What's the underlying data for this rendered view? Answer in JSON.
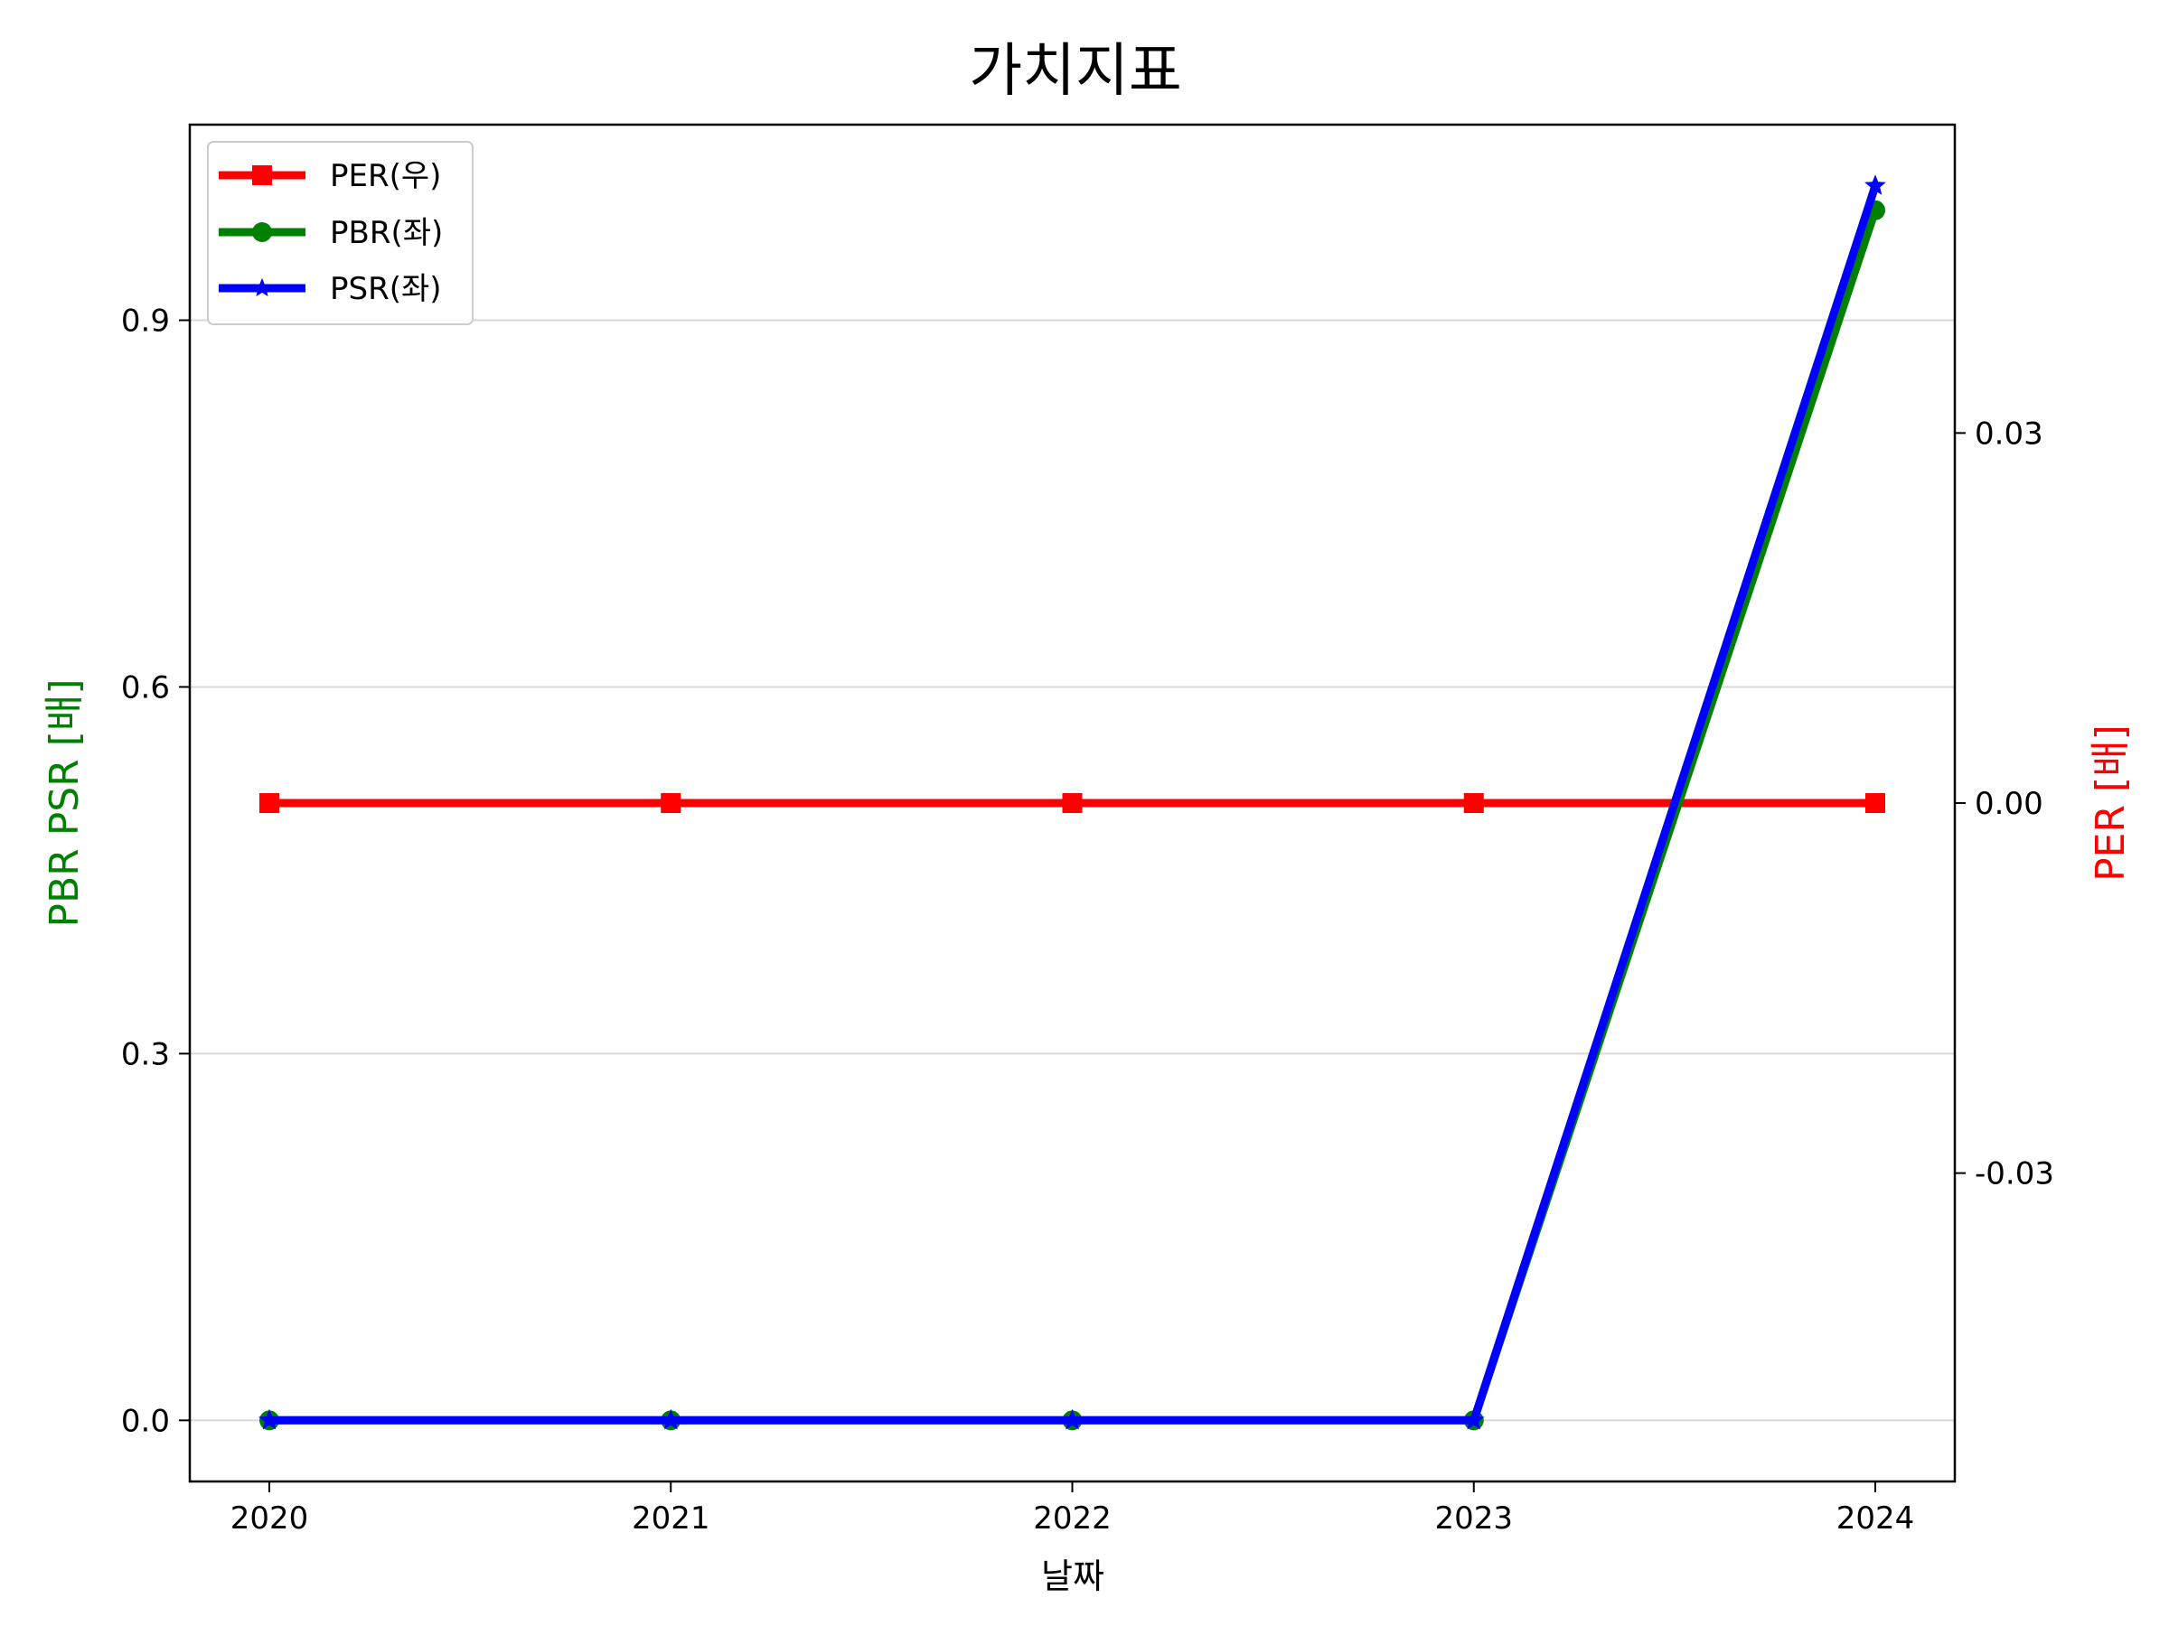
{
  "chart_data": {
    "type": "line",
    "title": "가치지표",
    "xlabel": "날짜",
    "ylabel_left": "PBR PSR [배]",
    "ylabel_right": "PER [배]",
    "categories": [
      "2020",
      "2021",
      "2022",
      "2023",
      "2024"
    ],
    "ylim_left": [
      -0.05,
      1.06
    ],
    "yticks_left": [
      0.0,
      0.3,
      0.6,
      0.9
    ],
    "yticks_left_labels": [
      "0.0",
      "0.3",
      "0.6",
      "0.9"
    ],
    "ylim_right": [
      -0.055,
      0.055
    ],
    "yticks_right": [
      -0.03,
      0.0,
      0.03
    ],
    "yticks_right_labels": [
      "-0.03",
      "0.00",
      "0.03"
    ],
    "grid": "horizontal",
    "legend_position": "top-left",
    "series": [
      {
        "name": "PER(우)",
        "axis": "right",
        "color": "#ff0000",
        "marker": "square",
        "values": [
          0,
          0,
          0,
          0,
          0
        ]
      },
      {
        "name": "PBR(좌)",
        "axis": "left",
        "color": "#008000",
        "marker": "circle",
        "values": [
          0,
          0,
          0,
          0,
          0.99
        ]
      },
      {
        "name": "PSR(좌)",
        "axis": "left",
        "color": "#0000ff",
        "marker": "star",
        "values": [
          0,
          0,
          0,
          0,
          1.01
        ]
      }
    ],
    "colors": {
      "ylabel_left": "#008000",
      "ylabel_right": "#ff0000"
    }
  }
}
